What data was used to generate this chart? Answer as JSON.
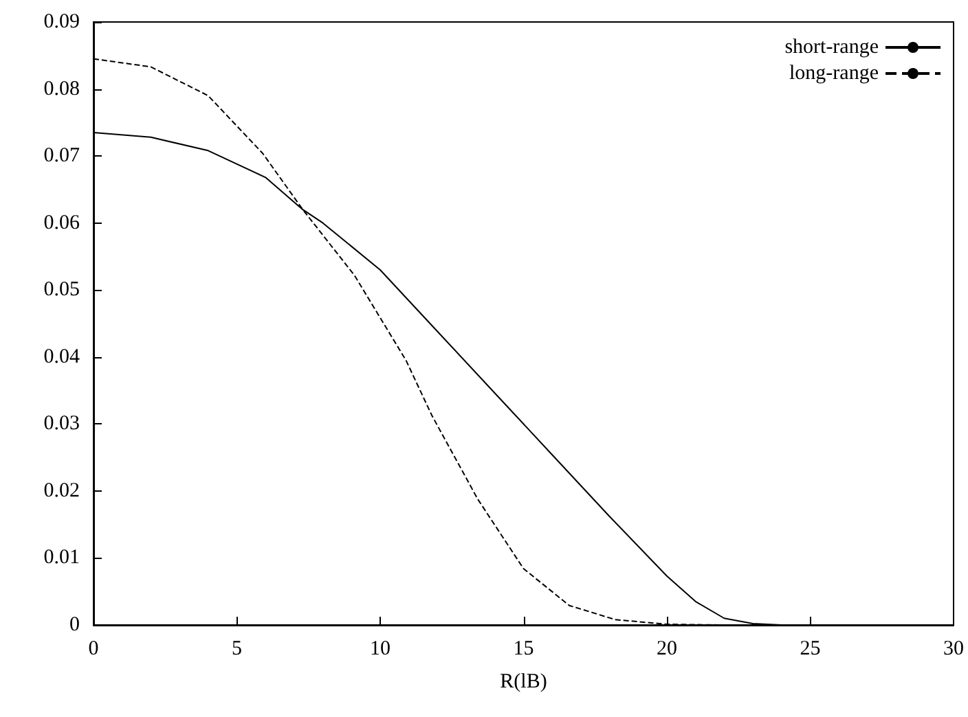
{
  "chart_data": {
    "type": "line",
    "xlabel": "R(lB)",
    "xlim": [
      0,
      30
    ],
    "xticks": [
      0,
      5,
      10,
      15,
      20,
      25,
      30
    ],
    "ylim": [
      0,
      0.09
    ],
    "yticks": [
      0,
      0.01,
      0.02,
      0.03,
      0.04,
      0.05,
      0.06,
      0.07,
      0.08,
      0.09
    ],
    "grid": false,
    "legend": "top right",
    "marker": "none",
    "series": [
      {
        "name": "short-range",
        "color": "#000000",
        "line_style": "solid",
        "x": [
          0,
          2,
          4,
          6,
          7.3,
          8,
          10,
          12,
          14,
          16,
          18,
          20,
          21,
          22,
          23,
          24,
          28
        ],
        "values": [
          0.0735,
          0.0728,
          0.0708,
          0.0668,
          0.062,
          0.06,
          0.053,
          0.0438,
          0.0346,
          0.0254,
          0.0162,
          0.0073,
          0.0035,
          0.001,
          0.0002,
          0,
          0
        ]
      },
      {
        "name": "long-range",
        "color": "#000000",
        "line_style": "dashed",
        "x": [
          0,
          2,
          4,
          5.9,
          7.3,
          9.1,
          10.9,
          11.8,
          13.4,
          15,
          16.6,
          18.2,
          20,
          22,
          28
        ],
        "values": [
          0.0845,
          0.0833,
          0.079,
          0.0704,
          0.062,
          0.0522,
          0.0395,
          0.0313,
          0.0188,
          0.0084,
          0.0029,
          0.0008,
          0.0001,
          0,
          0
        ]
      }
    ]
  }
}
